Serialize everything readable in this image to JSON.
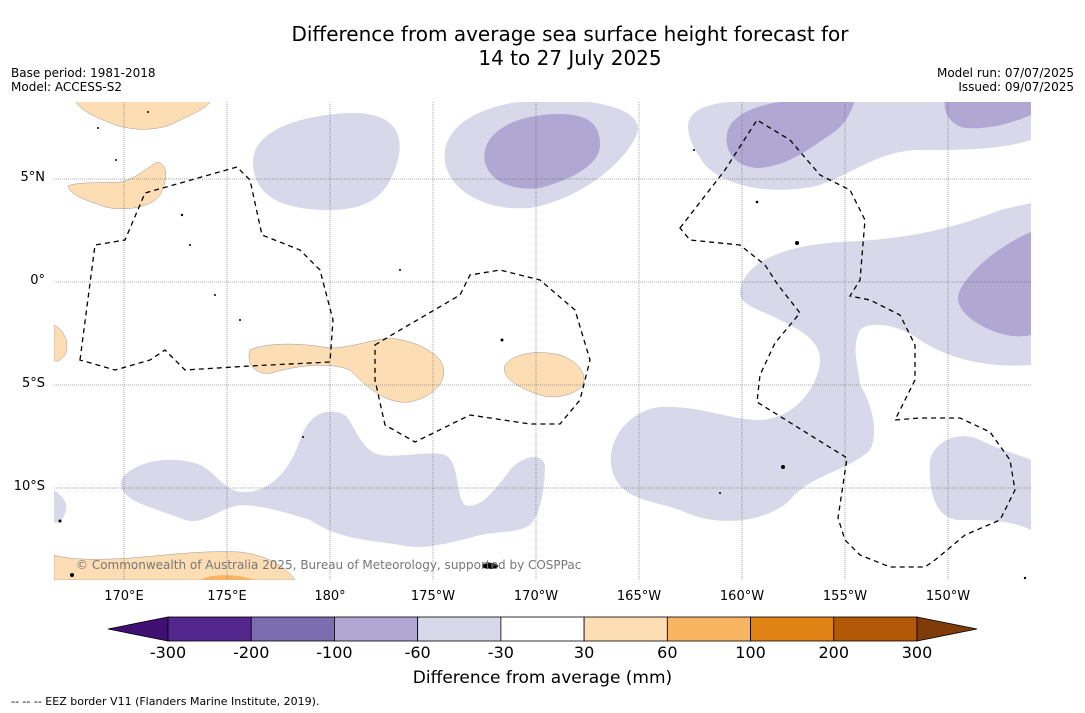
{
  "title_line1": "Difference from average sea surface height forecast for",
  "title_line2": "14 to 27 July 2025",
  "base_period": "Base period: 1981-2018",
  "model": "Model: ACCESS-S2",
  "model_run": "Model run: 07/07/2025",
  "issued": "Issued: 09/07/2025",
  "copyright": "© Commonwealth of Australia 2025, Bureau of Meteorology, supported by COSPPac",
  "footnote": "--  --  -- EEZ border V11 (Flanders Marine Institute, 2019).",
  "lat_labels": [
    "5°N",
    "0°",
    "5°S",
    "10°S"
  ],
  "lon_labels": [
    "170°E",
    "175°E",
    "180°",
    "175°W",
    "170°W",
    "165°W",
    "160°W",
    "155°W",
    "150°W"
  ],
  "colorbar": {
    "title": "Difference from average (mm)",
    "ticks": [
      "-300",
      "-200",
      "-100",
      "-60",
      "-30",
      "30",
      "60",
      "100",
      "200",
      "300"
    ],
    "colors": [
      "#3f0f72",
      "#54278f",
      "#7b6caf",
      "#b0a8d3",
      "#d9d8ea",
      "#ffffff",
      "#fdddb4",
      "#f8b460",
      "#e08214",
      "#b35806",
      "#7f3b08"
    ]
  },
  "colors": {
    "neg_light": "#d9d8ea",
    "neg_mid": "#b0a8d3",
    "pos_light": "#fdddb4",
    "pos_mid": "#f8b460"
  }
}
